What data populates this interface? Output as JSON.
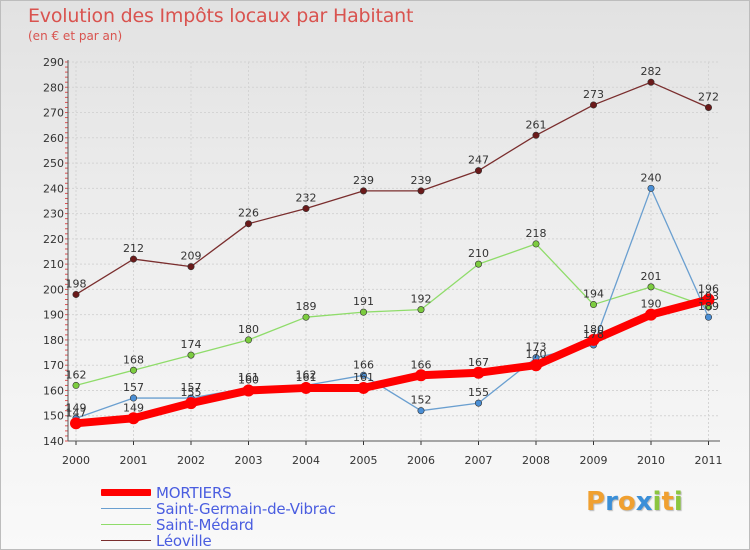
{
  "header": {
    "title": "Evolution des Impôts locaux par Habitant",
    "subtitle": "(en € et par an)"
  },
  "chart_data": {
    "type": "line",
    "title": "Evolution des Impôts locaux par Habitant",
    "subtitle": "(en € et par an)",
    "xlabel": "",
    "ylabel": "",
    "x": [
      "2000",
      "2001",
      "2002",
      "2003",
      "2004",
      "2005",
      "2006",
      "2007",
      "2008",
      "2009",
      "2010",
      "2011"
    ],
    "ylim": [
      140,
      290
    ],
    "yticks": [
      140,
      150,
      160,
      170,
      180,
      190,
      200,
      210,
      220,
      230,
      240,
      250,
      260,
      270,
      280,
      290
    ],
    "grid": true,
    "legend_position": "bottom-left",
    "series": [
      {
        "name": "MORTIERS",
        "color": "#ff0000",
        "values": [
          147,
          149,
          155,
          160,
          161,
          161,
          166,
          167,
          170,
          180,
          190,
          196
        ]
      },
      {
        "name": "Saint-Germain-de-Vibrac",
        "color": "#6a9fd0",
        "marker": "#4a8fd6",
        "values": [
          149,
          157,
          157,
          161,
          162,
          166,
          152,
          155,
          173,
          178,
          240,
          189
        ]
      },
      {
        "name": "Saint-Médard",
        "color": "#8fdc6a",
        "marker": "#7ccc3f",
        "values": [
          162,
          168,
          174,
          180,
          189,
          191,
          192,
          210,
          218,
          194,
          201,
          193
        ]
      },
      {
        "name": "Léoville",
        "color": "#7a2e2e",
        "marker": "#6b1a1a",
        "values": [
          198,
          212,
          209,
          226,
          232,
          239,
          239,
          247,
          261,
          273,
          282,
          272
        ]
      }
    ]
  },
  "logo": {
    "letters": [
      "P",
      "r",
      "o",
      "x",
      "i",
      "t",
      "i"
    ],
    "colors": [
      "#f0a030",
      "#3a8fd8",
      "#f0a030",
      "#3a8fd8",
      "#8cc63f",
      "#f0a030",
      "#8cc63f"
    ]
  }
}
